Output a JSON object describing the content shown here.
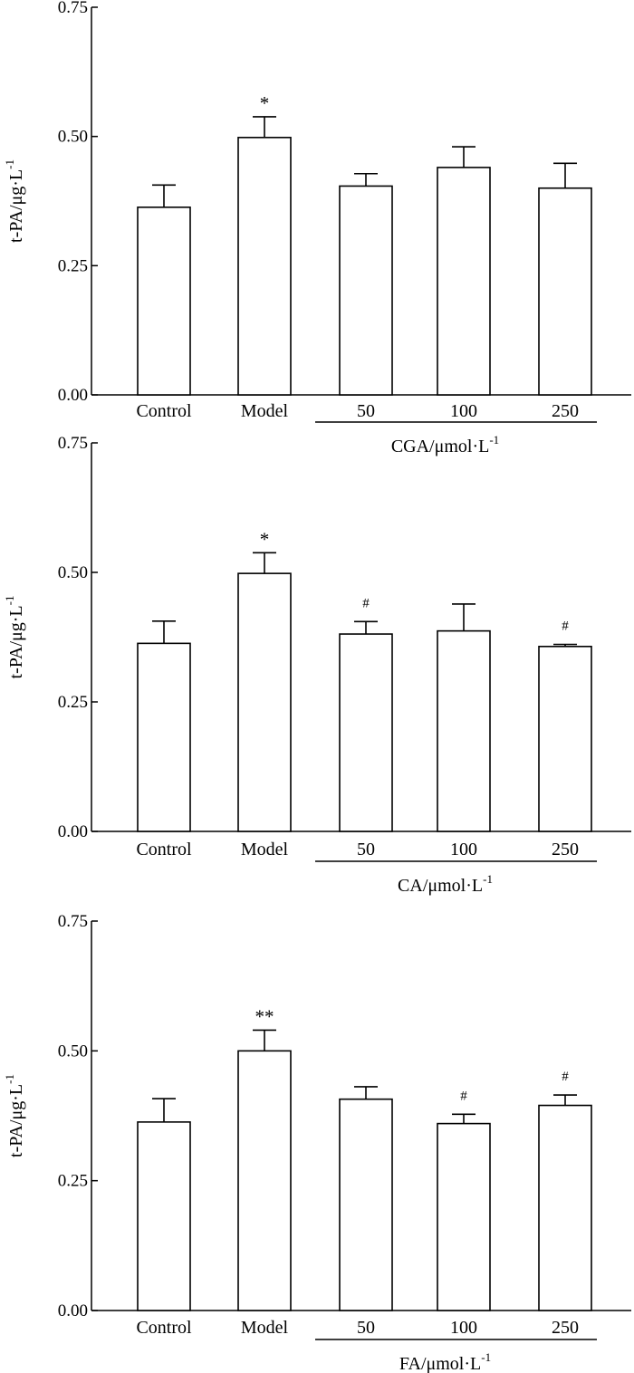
{
  "chart_data": [
    {
      "type": "bar",
      "ylabel": "t-PA/μg·L",
      "ylabel_sup": "-1",
      "ylim": [
        0,
        0.75
      ],
      "yticks": [
        "0.00",
        "0.25",
        "0.50",
        "0.75"
      ],
      "categories": [
        "Control",
        "Model",
        "50",
        "100",
        "250"
      ],
      "values": [
        0.363,
        0.498,
        0.404,
        0.44,
        0.4
      ],
      "errors": [
        0.043,
        0.04,
        0.024,
        0.04,
        0.048
      ],
      "annotations": [
        "",
        "*",
        "",
        "",
        ""
      ],
      "group_label": "CGA/μmol·L",
      "group_label_sup": "-1",
      "grid": false
    },
    {
      "type": "bar",
      "ylabel": "t-PA/μg·L",
      "ylabel_sup": "-1",
      "ylim": [
        0,
        0.75
      ],
      "yticks": [
        "0.00",
        "0.25",
        "0.50",
        "0.75"
      ],
      "categories": [
        "Control",
        "Model",
        "50",
        "100",
        "250"
      ],
      "values": [
        0.363,
        0.498,
        0.381,
        0.387,
        0.357
      ],
      "errors": [
        0.043,
        0.04,
        0.024,
        0.052,
        0.004
      ],
      "annotations": [
        "",
        "*",
        "#",
        "",
        "#"
      ],
      "group_label": "CA/μmol·L",
      "group_label_sup": "-1",
      "grid": false
    },
    {
      "type": "bar",
      "ylabel": "t-PA/μg·L",
      "ylabel_sup": "-1",
      "ylim": [
        0,
        0.75
      ],
      "yticks": [
        "0.00",
        "0.25",
        "0.50",
        "0.75"
      ],
      "categories": [
        "Control",
        "Model",
        "50",
        "100",
        "250"
      ],
      "values": [
        0.363,
        0.5,
        0.407,
        0.36,
        0.395
      ],
      "errors": [
        0.045,
        0.04,
        0.024,
        0.018,
        0.02
      ],
      "annotations": [
        "",
        "**",
        "",
        "#",
        "#"
      ],
      "group_label": "FA/μmol·L",
      "group_label_sup": "-1",
      "grid": false
    }
  ]
}
